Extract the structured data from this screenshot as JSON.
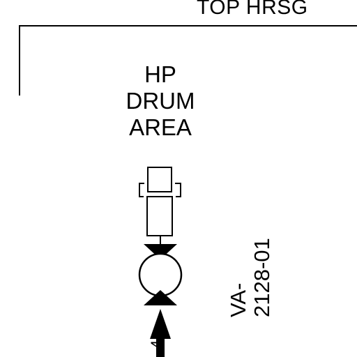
{
  "drawing": {
    "top_label": "TOP HRSG",
    "area_label": [
      "HP",
      "DRUM",
      "AREA"
    ],
    "valve_tag": [
      "VA-",
      "2128-01"
    ],
    "line_number_fragment": "4"
  }
}
